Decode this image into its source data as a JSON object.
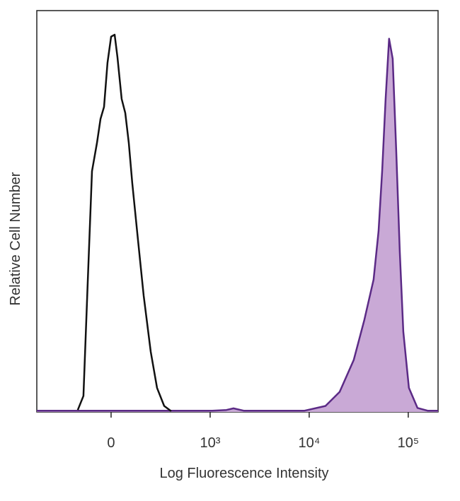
{
  "chart_data": {
    "type": "area",
    "x_label": "Log Fluorescence Intensity",
    "y_label": "Relative Cell Number",
    "xscale": "biexponential",
    "xlim": [
      -750,
      200000
    ],
    "ylim": [
      0,
      100
    ],
    "xticks": [
      0,
      {
        "value": 1000,
        "label": "10³"
      },
      {
        "value": 10000,
        "label": "10⁴"
      },
      {
        "value": 100000,
        "label": "10⁵"
      }
    ],
    "series": [
      {
        "color": "#5b2a86",
        "fill": "#c9a9d6",
        "x": [
          -750,
          1050,
          1460,
          1720,
          2200,
          8900,
          14600,
          20300,
          28200,
          36100,
          44700,
          50100,
          54500,
          59100,
          64100,
          69700,
          75700,
          82100,
          89100,
          101600,
          124000,
          158000,
          200000
        ],
        "values": [
          0.3,
          0.3,
          0.5,
          0.9,
          0.3,
          0.3,
          1.5,
          5,
          13,
          23,
          33,
          45,
          60,
          78,
          93,
          88,
          65,
          40,
          20,
          6,
          1,
          0.3,
          0.3
        ]
      },
      {
        "color": "#111111",
        "fill": "none",
        "x": [
          -336,
          -279,
          -236,
          -193,
          -143,
          -107,
          -71,
          -36,
          0,
          36,
          64,
          107,
          143,
          179,
          214,
          271,
          329,
          400,
          464,
          536,
          607
        ],
        "values": [
          0.5,
          4,
          32,
          60,
          67,
          73,
          76,
          87,
          93.5,
          94,
          88.5,
          78,
          74.5,
          67,
          57,
          43,
          29,
          15,
          6,
          1.5,
          0.2
        ]
      }
    ]
  }
}
